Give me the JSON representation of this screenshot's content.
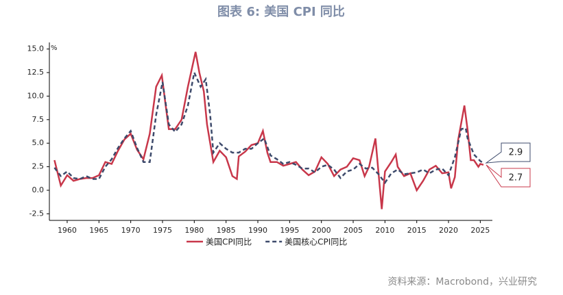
{
  "chart_data": {
    "type": "line",
    "title": "图表 6:  美国 CPI 同比",
    "y_unit": "%",
    "source": "资料来源：Macrobond，兴业研究",
    "xlim": [
      1957.2,
      2026.9
    ],
    "xticks": [
      1960,
      1965,
      1970,
      1975,
      1980,
      1985,
      1990,
      1995,
      2000,
      2005,
      2010,
      2015,
      2020,
      2025
    ],
    "ylim": [
      -3.2,
      15.7
    ],
    "yticks": [
      {
        "value": 15,
        "label": "15.0"
      },
      12.5,
      {
        "value": 10,
        "label": "10.0"
      },
      7.5,
      {
        "value": 5,
        "label": "5.0"
      },
      2.5,
      {
        "value": 0,
        "label": "0.0"
      },
      -2.5
    ],
    "legend": "bottom",
    "series": [
      {
        "name": "美国CPI同比",
        "color": "#c8374a",
        "dash": false,
        "end_label": 2.7,
        "x": [
          1958,
          1959,
          1960,
          1961,
          1962,
          1963,
          1964,
          1965,
          1966,
          1967,
          1968,
          1969,
          1970,
          1971,
          1972,
          1973,
          1974,
          1974.9,
          1975.5,
          1976,
          1977,
          1978,
          1979,
          1980.2,
          1980.8,
          1981.5,
          1982,
          1982.5,
          1983,
          1984,
          1985,
          1986,
          1986.7,
          1987,
          1988,
          1989,
          1990,
          1990.8,
          1991.5,
          1992,
          1993,
          1994,
          1995,
          1996,
          1997,
          1998,
          1999,
          2000,
          2001,
          2002,
          2003,
          2004,
          2005,
          2006,
          2006.8,
          2007.5,
          2008.5,
          2009.5,
          2010,
          2011,
          2011.7,
          2012,
          2013,
          2014,
          2015,
          2016,
          2017,
          2018,
          2019,
          2020,
          2020.4,
          2021,
          2021.5,
          2022.5,
          2023,
          2023.5,
          2024,
          2024.7,
          2025,
          2025.5
        ],
        "values": [
          3.2,
          0.5,
          1.6,
          1.0,
          1.2,
          1.3,
          1.3,
          1.6,
          3.0,
          2.8,
          4.2,
          5.4,
          6.0,
          4.3,
          3.3,
          6.0,
          11.0,
          12.2,
          9.0,
          6.5,
          6.5,
          7.5,
          11.0,
          14.7,
          12.5,
          10.5,
          7.0,
          5.0,
          3.0,
          4.2,
          3.5,
          1.5,
          1.2,
          3.6,
          4.1,
          4.8,
          5.0,
          6.3,
          4.0,
          3.0,
          3.0,
          2.6,
          2.8,
          3.0,
          2.2,
          1.6,
          2.0,
          3.5,
          2.8,
          1.5,
          2.2,
          2.5,
          3.4,
          3.2,
          1.5,
          2.5,
          5.5,
          -2.0,
          2.0,
          3.0,
          3.8,
          2.5,
          1.5,
          1.8,
          0.0,
          1.0,
          2.2,
          2.6,
          1.8,
          1.9,
          0.2,
          1.4,
          5.3,
          9.0,
          6.4,
          3.2,
          3.2,
          2.5,
          2.8,
          2.7
        ]
      },
      {
        "name": "美国核心CPI同比",
        "color": "#3d4a6b",
        "dash": true,
        "end_label": 2.9,
        "x": [
          1958,
          1959,
          1960,
          1961,
          1962,
          1963,
          1964,
          1965,
          1966,
          1967,
          1968,
          1969,
          1970,
          1971,
          1972,
          1973,
          1974,
          1975,
          1976,
          1977,
          1978,
          1979,
          1980,
          1981,
          1981.8,
          1982.5,
          1983,
          1984,
          1985,
          1986,
          1987,
          1988,
          1989,
          1990,
          1991,
          1992,
          1993,
          1994,
          1995,
          1996,
          1997,
          1998,
          1999,
          2000,
          2001,
          2002,
          2003,
          2004,
          2005,
          2006,
          2007,
          2008,
          2009,
          2010,
          2011,
          2012,
          2013,
          2014,
          2015,
          2016,
          2017,
          2018,
          2019,
          2020,
          2021,
          2022,
          2022.7,
          2023,
          2024,
          2025,
          2025.5
        ],
        "values": [
          2.4,
          1.5,
          2.0,
          1.3,
          1.2,
          1.5,
          1.2,
          1.2,
          2.5,
          3.3,
          4.5,
          5.5,
          6.3,
          4.5,
          3.0,
          3.0,
          8.0,
          11.5,
          7.0,
          6.2,
          7.0,
          9.0,
          12.5,
          11.0,
          11.8,
          8.0,
          4.0,
          5.0,
          4.4,
          4.0,
          4.0,
          4.4,
          4.4,
          5.0,
          5.5,
          3.7,
          3.3,
          2.8,
          3.0,
          2.7,
          2.3,
          2.3,
          1.9,
          2.5,
          2.7,
          2.2,
          1.3,
          2.0,
          2.2,
          2.8,
          2.3,
          2.4,
          1.7,
          0.8,
          1.8,
          2.2,
          1.7,
          1.8,
          1.9,
          2.2,
          1.8,
          2.2,
          2.3,
          1.6,
          3.5,
          6.5,
          6.6,
          5.5,
          3.8,
          3.1,
          2.9
        ]
      }
    ]
  }
}
